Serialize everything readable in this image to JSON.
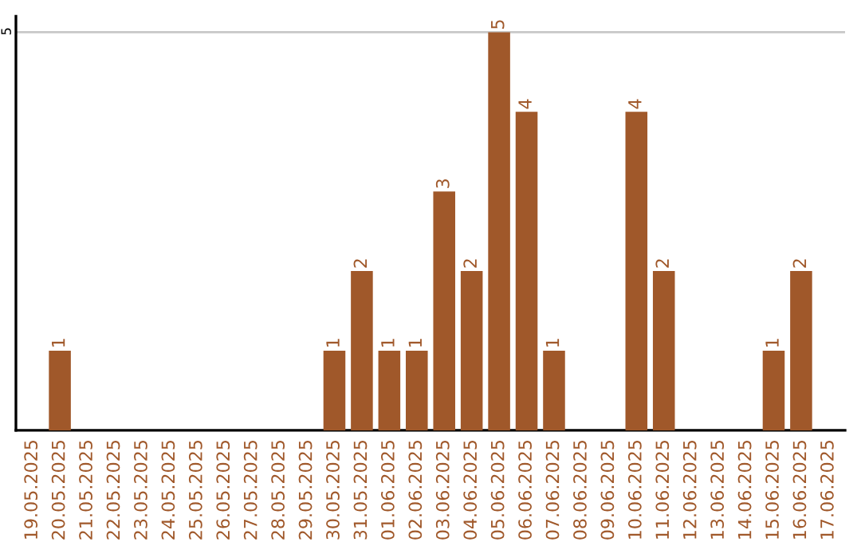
{
  "chart_data": {
    "type": "bar",
    "categories": [
      "19.05.2025",
      "20.05.2025",
      "21.05.2025",
      "22.05.2025",
      "23.05.2025",
      "24.05.2025",
      "25.05.2025",
      "26.05.2025",
      "27.05.2025",
      "28.05.2025",
      "29.05.2025",
      "30.05.2025",
      "31.05.2025",
      "01.06.2025",
      "02.06.2025",
      "03.06.2025",
      "04.06.2025",
      "05.06.2025",
      "06.06.2025",
      "07.06.2025",
      "08.06.2025",
      "09.06.2025",
      "10.06.2025",
      "11.06.2025",
      "12.06.2025",
      "13.06.2025",
      "14.06.2025",
      "15.06.2025",
      "16.06.2025",
      "17.06.2025"
    ],
    "values": [
      0,
      1,
      0,
      0,
      0,
      0,
      0,
      0,
      0,
      0,
      0,
      1,
      2,
      1,
      1,
      3,
      2,
      5,
      4,
      1,
      0,
      0,
      4,
      2,
      0,
      0,
      0,
      1,
      2,
      0
    ],
    "value_labels": [
      null,
      "1",
      null,
      null,
      null,
      null,
      null,
      null,
      null,
      null,
      null,
      "1",
      "2",
      "1",
      "1",
      "3",
      "2",
      "5",
      "4",
      "1",
      null,
      null,
      "4",
      "2",
      null,
      null,
      null,
      "1",
      "2",
      null
    ],
    "color": "#a0582a",
    "ylim": [
      0,
      5.2
    ],
    "yticks": [
      5
    ],
    "grid": "y",
    "legend": false
  }
}
